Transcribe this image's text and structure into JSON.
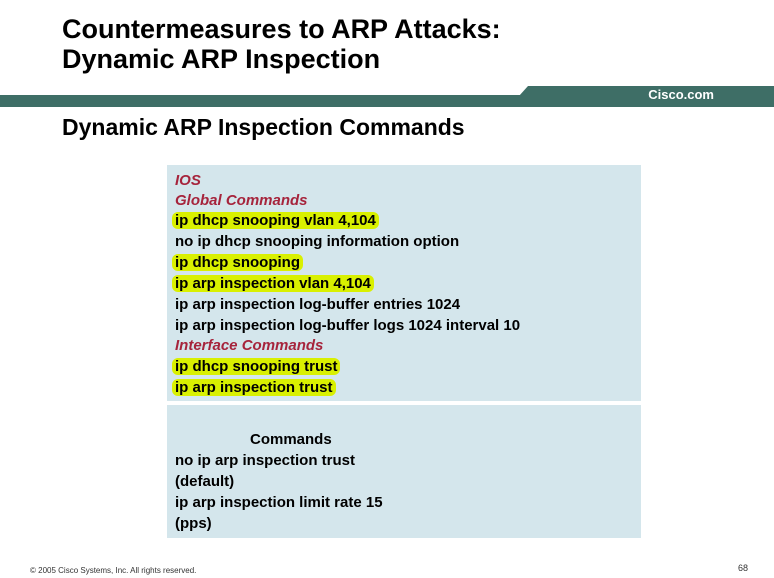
{
  "title": {
    "line1": "Countermeasures to ARP Attacks:",
    "line2": "Dynamic ARP Inspection"
  },
  "brand": "Cisco.com",
  "subtitle": "Dynamic ARP Inspection Commands",
  "ios_box": {
    "heading": "IOS",
    "global_heading": "Global Commands",
    "global_commands": [
      "ip dhcp snooping vlan 4,104",
      "no ip dhcp snooping information option",
      "ip dhcp snooping",
      "ip arp inspection vlan 4,104",
      "ip arp inspection log-buffer entries 1024",
      "ip arp inspection log-buffer logs 1024 interval 10"
    ],
    "interface_heading": "Interface Commands",
    "interface_commands": [
      "ip dhcp snooping trust",
      "ip arp inspection trust"
    ]
  },
  "second_box": {
    "heading": "Commands",
    "lines": [
      "no ip arp inspection trust",
      "(default)",
      "ip arp inspection limit rate 15",
      "(pps)"
    ]
  },
  "footer": "© 2005 Cisco Systems, Inc. All rights reserved.",
  "page_number": "68",
  "colors": {
    "bar": "#3e6e66",
    "highlight": "#d9f000",
    "box_bg": "#d4e6ec",
    "heading_red": "#a6243c"
  }
}
